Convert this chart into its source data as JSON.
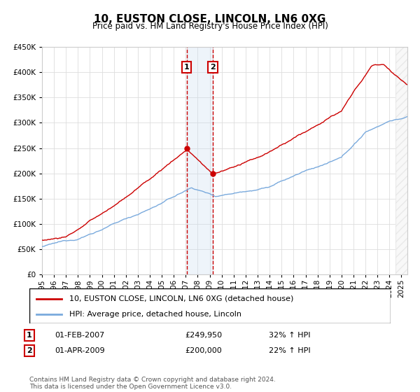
{
  "title": "10, EUSTON CLOSE, LINCOLN, LN6 0XG",
  "subtitle": "Price paid vs. HM Land Registry's House Price Index (HPI)",
  "legend_line1": "10, EUSTON CLOSE, LINCOLN, LN6 0XG (detached house)",
  "legend_line2": "HPI: Average price, detached house, Lincoln",
  "sale1_date": "01-FEB-2007",
  "sale1_price": 249950,
  "sale1_label": "32% ↑ HPI",
  "sale2_date": "01-APR-2009",
  "sale2_price": 200000,
  "sale2_label": "22% ↑ HPI",
  "footnote": "Contains HM Land Registry data © Crown copyright and database right 2024.\nThis data is licensed under the Open Government Licence v3.0.",
  "line_red_color": "#cc0000",
  "line_blue_color": "#7aaadd",
  "vline_color": "#cc0000",
  "shade_color": "#c8ddf0",
  "ylim": [
    0,
    450000
  ],
  "yticks": [
    0,
    50000,
    100000,
    150000,
    200000,
    250000,
    300000,
    350000,
    400000,
    450000
  ],
  "xlim_start": 1995.0,
  "xlim_end": 2025.5,
  "sale1_x": 2007.083,
  "sale2_x": 2009.25,
  "hatch_start": 2024.5
}
